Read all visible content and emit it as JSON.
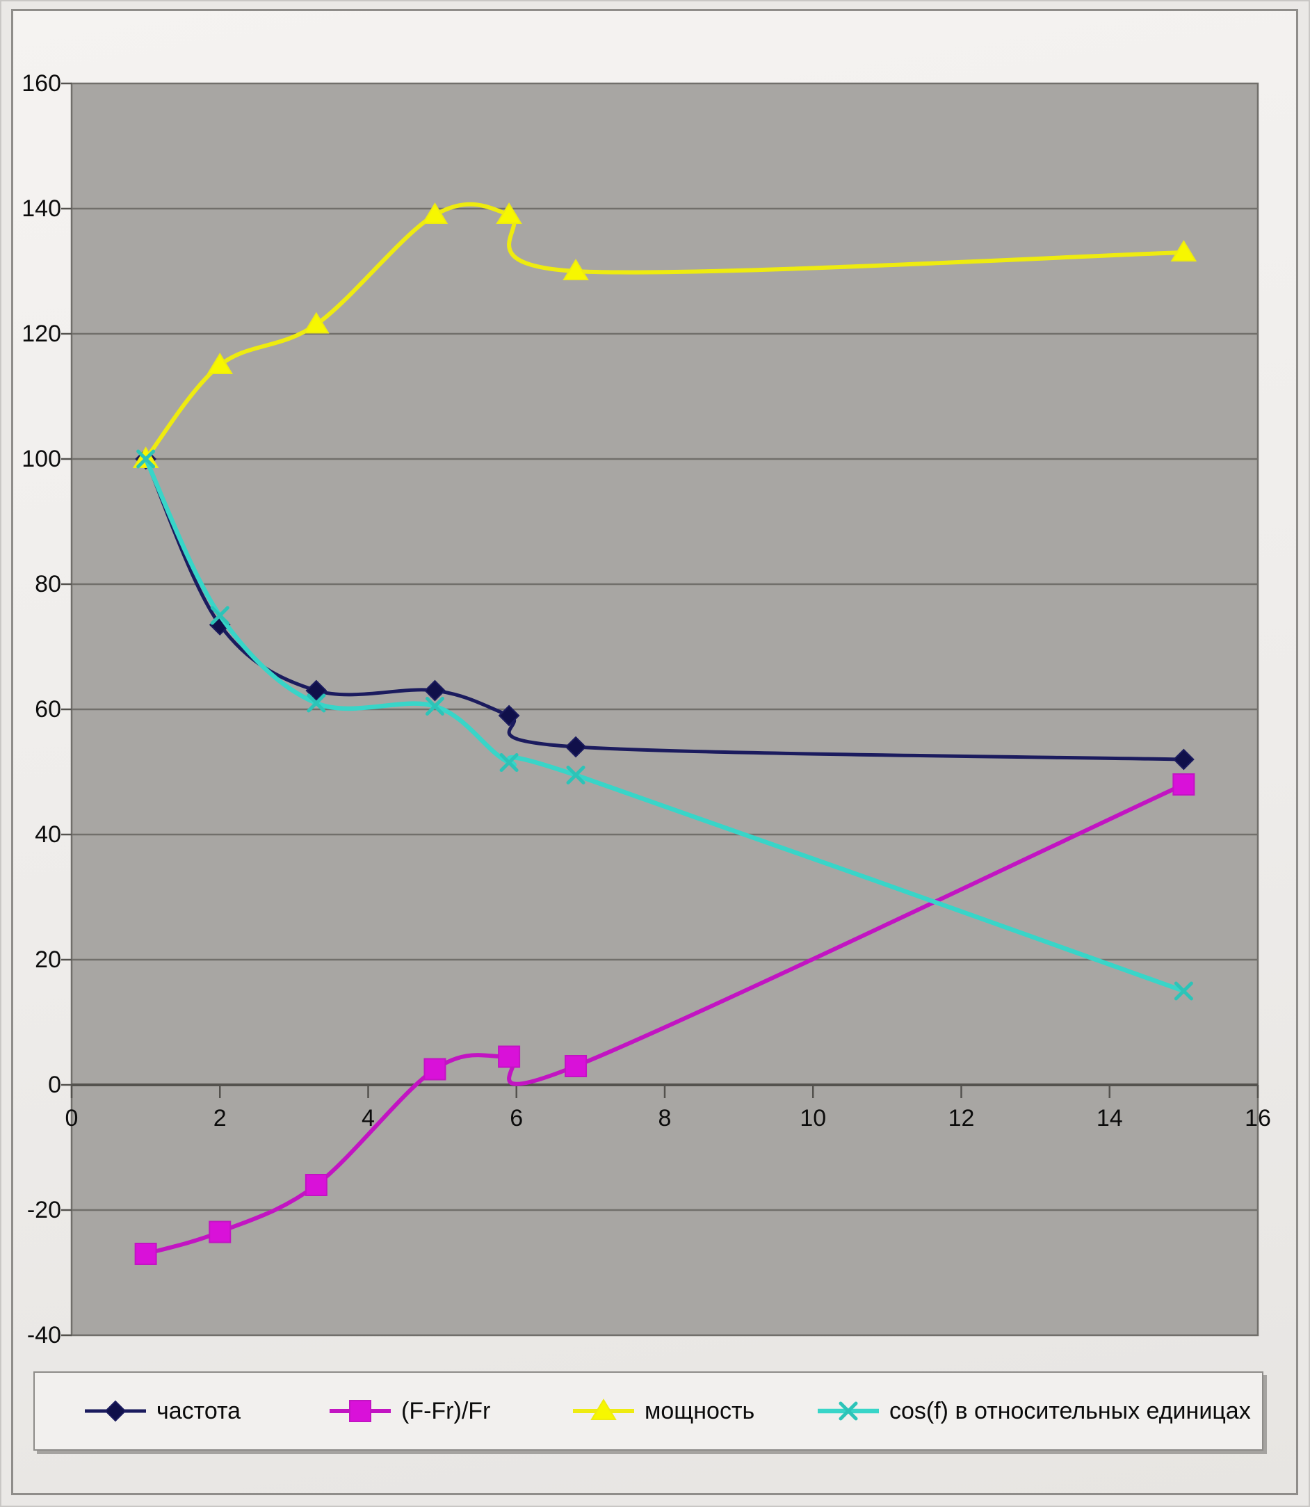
{
  "chart_data": {
    "type": "line",
    "title": "",
    "xlabel": "",
    "ylabel": "",
    "x": [
      1,
      2,
      3.3,
      4.9,
      5.9,
      6.8,
      15
    ],
    "series": [
      {
        "name": "частота",
        "marker": "diamond",
        "color": "#1b1b5e",
        "marker_color": "#10104a",
        "values": [
          100,
          73.5,
          63,
          63,
          59,
          54,
          52
        ]
      },
      {
        "name": "(F-Fr)/Fr",
        "marker": "square",
        "color": "#c214c2",
        "marker_color": "#d911d9",
        "values": [
          -27,
          -23.5,
          -16,
          2.5,
          4.5,
          3,
          48
        ]
      },
      {
        "name": "мощность",
        "marker": "triangle",
        "color": "#eeeb10",
        "marker_color": "#f7f700",
        "values": [
          100,
          115,
          121.5,
          139,
          139,
          130,
          133
        ]
      },
      {
        "name": "cos(f) в относительных единицах",
        "marker": "x",
        "color": "#38d5c8",
        "marker_color": "#2cc4b8",
        "values": [
          100,
          75,
          61,
          60.5,
          51.5,
          49.5,
          15
        ]
      }
    ],
    "xlim": [
      0,
      16
    ],
    "ylim": [
      -40,
      160
    ],
    "x_ticks": [
      0,
      2,
      4,
      6,
      8,
      10,
      12,
      14,
      16
    ],
    "y_ticks": [
      160,
      140,
      120,
      100,
      80,
      60,
      40,
      20,
      0,
      -20,
      -40
    ],
    "grid": true,
    "smoothed_lines": true,
    "legend_position": "bottom"
  },
  "colors": {
    "plot_background": "#a8a6a3",
    "chart_background": "#f1efed",
    "gridline": "#716f6b",
    "axis": "#54524e",
    "legend_background": "#f2f0ee",
    "legend_border": "#8d8b88"
  }
}
